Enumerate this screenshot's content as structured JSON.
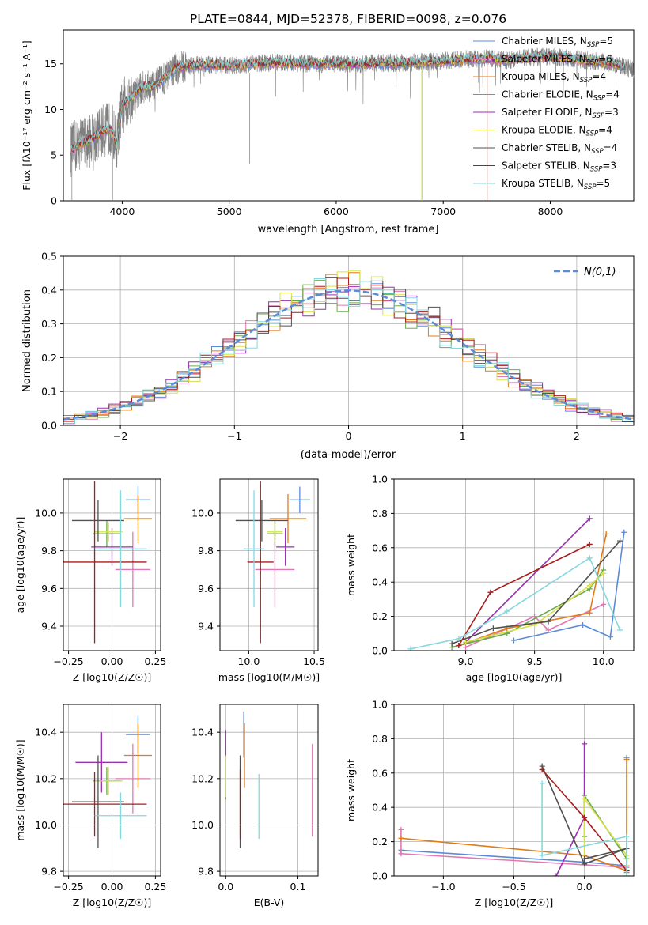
{
  "page_title": "PLATE=0844, MJD=52378, FIBERID=0098, z=0.076",
  "colors": {
    "chabrier_miles": "#5b8bd8",
    "salpeter_miles": "#e078b4",
    "kroupa_miles": "#e07b1a",
    "chabrier_elodie": "#6aaa4e",
    "salpeter_elodie": "#9a2fb0",
    "kroupa_elodie": "#d6e04a",
    "chabrier_stelib": "#505050",
    "salpeter_stelib": "#a81c1c",
    "kroupa_stelib": "#86d8df",
    "spectrum": "#7f7f7f",
    "gaussian": "#5b8bd8",
    "grid": "#b0b0b0"
  },
  "chart_data": [
    {
      "type": "line",
      "title": "PLATE=0844, MJD=52378, FIBERID=0098, z=0.076",
      "xlabel": "wavelength [Angstrom, rest frame]",
      "ylabel": "Flux [fλ10⁻¹⁷ erg cm⁻² s⁻¹ A⁻¹]",
      "xlim": [
        3450,
        8780
      ],
      "ylim": [
        0,
        18.7
      ],
      "xticks": [
        4000,
        5000,
        6000,
        7000,
        8000
      ],
      "yticks": [
        0,
        5,
        10,
        15
      ],
      "grid": false,
      "legend_position": "right",
      "legend": [
        "Chabrier MILES, N_SSP=5",
        "Salpeter MILES, N_SSP=6",
        "Kroupa MILES, N_SSP=4",
        "Chabrier ELODIE, N_SSP=4",
        "Salpeter ELODIE, N_SSP=3",
        "Kroupa ELODIE, N_SSP=4",
        "Chabrier STELIB, N_SSP=4",
        "Salpeter STELIB, N_SSP=3",
        "Kroupa STELIB, N_SSP=5"
      ],
      "continuum": {
        "x": [
          3520,
          3600,
          3700,
          3800,
          3900,
          3950,
          4000,
          4100,
          4200,
          4300,
          4400,
          4500,
          4600,
          4800,
          5000,
          5200,
          5400,
          5600,
          5800,
          6000,
          6200,
          6400,
          6600,
          6800,
          7000,
          7200,
          7400,
          7600,
          7800,
          8000,
          8200,
          8400,
          8600,
          8780
        ],
        "y": [
          5.5,
          6.3,
          6.6,
          7.5,
          8.0,
          6.0,
          10.5,
          11.5,
          12.5,
          12.5,
          13.5,
          14.5,
          14.8,
          14.9,
          14.8,
          15.0,
          15.1,
          15.1,
          15.0,
          15.0,
          15.0,
          15.1,
          15.1,
          15.2,
          15.3,
          15.5,
          15.6,
          15.4,
          15.7,
          15.8,
          15.6,
          15.3,
          15.0,
          14.4
        ]
      }
    },
    {
      "type": "line",
      "xlabel": "(data-model)/error",
      "ylabel": "Normed distribution",
      "xlim": [
        -2.5,
        2.5
      ],
      "ylim": [
        0,
        0.5
      ],
      "xticks": [
        -2,
        -1,
        0,
        1,
        2
      ],
      "yticks": [
        0.0,
        0.1,
        0.2,
        0.3,
        0.4,
        0.5
      ],
      "grid": true,
      "legend_position": "upper right",
      "legend": [
        "N(0,1)"
      ],
      "histogram_bins": [
        -2.5,
        -2.4,
        -2.3,
        -2.2,
        -2.1,
        -2.0,
        -1.9,
        -1.8,
        -1.7,
        -1.6,
        -1.5,
        -1.4,
        -1.3,
        -1.2,
        -1.1,
        -1.0,
        -0.9,
        -0.8,
        -0.7,
        -0.6,
        -0.5,
        -0.4,
        -0.3,
        -0.2,
        -0.1,
        0.0,
        0.1,
        0.2,
        0.3,
        0.4,
        0.5,
        0.6,
        0.7,
        0.8,
        0.9,
        1.0,
        1.1,
        1.2,
        1.3,
        1.4,
        1.5,
        1.6,
        1.7,
        1.8,
        1.9,
        2.0,
        2.1,
        2.2,
        2.3,
        2.4,
        2.5
      ],
      "series_note_order": "same order as legend of panel 1"
    },
    {
      "type": "scatter",
      "xlabel": "Z [log10(Z/Z☉)]",
      "ylabel": "age  [log10(age/yr)]",
      "xlim": [
        -0.28,
        0.28
      ],
      "ylim": [
        9.27,
        10.18
      ],
      "xticks": [
        -0.25,
        0.0,
        0.25
      ],
      "yticks": [
        9.4,
        9.6,
        9.8,
        10.0
      ],
      "grid": true,
      "points": [
        {
          "x": 0.15,
          "xerr": 0.07,
          "y": 10.07,
          "yerr": 0.07
        },
        {
          "x": 0.12,
          "xerr": 0.1,
          "y": 9.7,
          "yerr": 0.2
        },
        {
          "x": 0.15,
          "xerr": 0.08,
          "y": 9.97,
          "yerr": 0.13
        },
        {
          "x": -0.03,
          "xerr": 0.08,
          "y": 9.89,
          "yerr": 0.07
        },
        {
          "x": 0.0,
          "xerr": 0.12,
          "y": 9.82,
          "yerr": 0.1
        },
        {
          "x": -0.02,
          "xerr": 0.08,
          "y": 9.9,
          "yerr": 0.05
        },
        {
          "x": -0.08,
          "xerr": 0.15,
          "y": 9.96,
          "yerr": 0.11
        },
        {
          "x": -0.1,
          "xerr": 0.3,
          "y": 9.74,
          "yerr": 0.43
        },
        {
          "x": 0.05,
          "xerr": 0.15,
          "y": 9.81,
          "yerr": 0.31
        }
      ]
    },
    {
      "type": "scatter",
      "xlabel": "mass [log10(M/M☉)]",
      "ylabel": "",
      "xlim": [
        9.78,
        10.53
      ],
      "ylim": [
        9.27,
        10.18
      ],
      "xticks": [
        10.0,
        10.5
      ],
      "yticks": [
        9.4,
        9.6,
        9.8,
        10.0
      ],
      "grid": true,
      "points": [
        {
          "x": 10.39,
          "xerr": 0.08,
          "y": 10.07,
          "yerr": 0.07
        },
        {
          "x": 10.2,
          "xerr": 0.15,
          "y": 9.7,
          "yerr": 0.2
        },
        {
          "x": 10.3,
          "xerr": 0.14,
          "y": 9.97,
          "yerr": 0.13
        },
        {
          "x": 10.2,
          "xerr": 0.06,
          "y": 9.89,
          "yerr": 0.07
        },
        {
          "x": 10.28,
          "xerr": 0.07,
          "y": 9.82,
          "yerr": 0.1
        },
        {
          "x": 10.2,
          "xerr": 0.06,
          "y": 9.9,
          "yerr": 0.05
        },
        {
          "x": 10.1,
          "xerr": 0.2,
          "y": 9.96,
          "yerr": 0.11
        },
        {
          "x": 10.09,
          "xerr": 0.1,
          "y": 9.74,
          "yerr": 0.43
        },
        {
          "x": 10.04,
          "xerr": 0.08,
          "y": 9.81,
          "yerr": 0.31
        }
      ]
    },
    {
      "type": "line",
      "xlabel": "age  [log10(age/yr)]",
      "ylabel": "mass weight",
      "xlim": [
        8.48,
        10.22
      ],
      "ylim": [
        0,
        1.0
      ],
      "xticks": [
        9.0,
        9.5,
        10.0
      ],
      "yticks": [
        0.0,
        0.2,
        0.4,
        0.6,
        0.8,
        1.0
      ],
      "grid": true,
      "series": [
        {
          "name": "Chabrier MILES",
          "x": [
            9.35,
            9.85,
            10.05,
            10.15
          ],
          "y": [
            0.06,
            0.15,
            0.08,
            0.69
          ]
        },
        {
          "name": "Salpeter MILES",
          "x": [
            9.0,
            9.5,
            9.6,
            10.0
          ],
          "y": [
            0.02,
            0.2,
            0.12,
            0.27
          ]
        },
        {
          "name": "Kroupa MILES",
          "x": [
            8.95,
            9.3,
            9.9,
            10.02
          ],
          "y": [
            0.03,
            0.13,
            0.22,
            0.68
          ]
        },
        {
          "name": "Chabrier ELODIE",
          "x": [
            8.9,
            9.3,
            9.9,
            10.0
          ],
          "y": [
            0.02,
            0.1,
            0.36,
            0.47
          ]
        },
        {
          "name": "Salpeter ELODIE",
          "x": [
            9.0,
            9.9
          ],
          "y": [
            0.05,
            0.77
          ]
        },
        {
          "name": "Kroupa ELODIE",
          "x": [
            9.0,
            9.5,
            9.9,
            10.0
          ],
          "y": [
            0.05,
            0.15,
            0.38,
            0.45
          ]
        },
        {
          "name": "Chabrier STELIB",
          "x": [
            8.9,
            9.2,
            9.6,
            10.12
          ],
          "y": [
            0.04,
            0.13,
            0.17,
            0.64
          ]
        },
        {
          "name": "Salpeter STELIB",
          "x": [
            8.95,
            9.18,
            9.9
          ],
          "y": [
            0.03,
            0.34,
            0.62
          ]
        },
        {
          "name": "Kroupa STELIB",
          "x": [
            8.6,
            8.95,
            9.3,
            9.9,
            10.12
          ],
          "y": [
            0.01,
            0.07,
            0.23,
            0.54,
            0.12
          ]
        }
      ]
    },
    {
      "type": "scatter",
      "xlabel": "Z [log10(Z/Z☉)]",
      "ylabel": "mass [log10(M/M☉)]",
      "xlim": [
        -0.28,
        0.28
      ],
      "ylim": [
        9.78,
        10.52
      ],
      "xticks": [
        -0.25,
        0.0,
        0.25
      ],
      "yticks": [
        9.8,
        10.0,
        10.2,
        10.4
      ],
      "grid": true,
      "points": [
        {
          "x": 0.15,
          "xerr": 0.07,
          "y": 10.39,
          "yerr": 0.08
        },
        {
          "x": 0.12,
          "xerr": 0.1,
          "y": 10.2,
          "yerr": 0.15
        },
        {
          "x": 0.15,
          "xerr": 0.08,
          "y": 10.3,
          "yerr": 0.14
        },
        {
          "x": -0.03,
          "xerr": 0.08,
          "y": 10.19,
          "yerr": 0.06
        },
        {
          "x": -0.06,
          "xerr": 0.15,
          "y": 10.27,
          "yerr": 0.13
        },
        {
          "x": -0.02,
          "xerr": 0.08,
          "y": 10.19,
          "yerr": 0.06
        },
        {
          "x": -0.08,
          "xerr": 0.15,
          "y": 10.1,
          "yerr": 0.2
        },
        {
          "x": -0.1,
          "xerr": 0.3,
          "y": 10.09,
          "yerr": 0.14
        },
        {
          "x": 0.05,
          "xerr": 0.15,
          "y": 10.04,
          "yerr": 0.1
        }
      ]
    },
    {
      "type": "scatter",
      "xlabel": "E(B-V)",
      "ylabel": "",
      "xlim": [
        -0.008,
        0.128
      ],
      "ylim": [
        9.78,
        10.52
      ],
      "xticks": [
        0.0,
        0.1
      ],
      "yticks": [
        9.8,
        10.0,
        10.2,
        10.4
      ],
      "grid": true,
      "points": [
        {
          "x": 0.025,
          "y": 10.39,
          "yerr": 0.1
        },
        {
          "x": 0.12,
          "y": 10.15,
          "yerr": 0.2
        },
        {
          "x": 0.026,
          "y": 10.3,
          "yerr": 0.14
        },
        {
          "x": 0.0,
          "y": 10.19,
          "yerr": 0.08
        },
        {
          "x": 0.0,
          "y": 10.34,
          "yerr": 0.07
        },
        {
          "x": 0.0,
          "y": 10.21,
          "yerr": 0.09
        },
        {
          "x": 0.02,
          "y": 10.1,
          "yerr": 0.2
        },
        {
          "x": 0.02,
          "y": 10.09,
          "yerr": 0.15
        },
        {
          "x": 0.046,
          "y": 10.08,
          "yerr": 0.14
        }
      ]
    },
    {
      "type": "line",
      "xlabel": "Z [log10(Z/Z☉)]",
      "ylabel": "mass weight",
      "xlim": [
        -1.35,
        0.35
      ],
      "ylim": [
        0,
        1.0
      ],
      "xticks": [
        -1.0,
        -0.5,
        0.0
      ],
      "yticks": [
        0.0,
        0.2,
        0.4,
        0.6,
        0.8,
        1.0
      ],
      "grid": true,
      "series": [
        {
          "name": "Chabrier MILES",
          "x": [
            -1.3,
            0.0,
            0.3,
            0.3
          ],
          "y": [
            0.15,
            0.08,
            0.06,
            0.69
          ]
        },
        {
          "name": "Salpeter MILES",
          "x": [
            -1.3,
            -1.3,
            0.3
          ],
          "y": [
            0.27,
            0.13,
            0.05
          ]
        },
        {
          "name": "Kroupa MILES",
          "x": [
            -1.3,
            0.0,
            0.3,
            0.3
          ],
          "y": [
            0.22,
            0.12,
            0.03,
            0.68
          ]
        },
        {
          "name": "Chabrier ELODIE",
          "x": [
            0.0,
            0.0,
            0.3,
            0.3
          ],
          "y": [
            0.23,
            0.47,
            0.1,
            0.02
          ]
        },
        {
          "name": "Salpeter ELODIE",
          "x": [
            -0.2,
            0.0,
            0.0
          ],
          "y": [
            0.0,
            0.34,
            0.77
          ]
        },
        {
          "name": "Kroupa ELODIE",
          "x": [
            0.0,
            0.0,
            0.3,
            0.3
          ],
          "y": [
            0.1,
            0.45,
            0.12,
            0.06
          ]
        },
        {
          "name": "Chabrier STELIB",
          "x": [
            -0.3,
            0.0,
            0.3,
            0.0
          ],
          "y": [
            0.64,
            0.07,
            0.16,
            0.1
          ]
        },
        {
          "name": "Salpeter STELIB",
          "x": [
            -0.3,
            0.0,
            0.3
          ],
          "y": [
            0.62,
            0.34,
            0.03
          ]
        },
        {
          "name": "Kroupa STELIB",
          "x": [
            -0.3,
            -0.3,
            0.3,
            0.3
          ],
          "y": [
            0.54,
            0.12,
            0.23,
            0.0
          ]
        }
      ]
    }
  ]
}
